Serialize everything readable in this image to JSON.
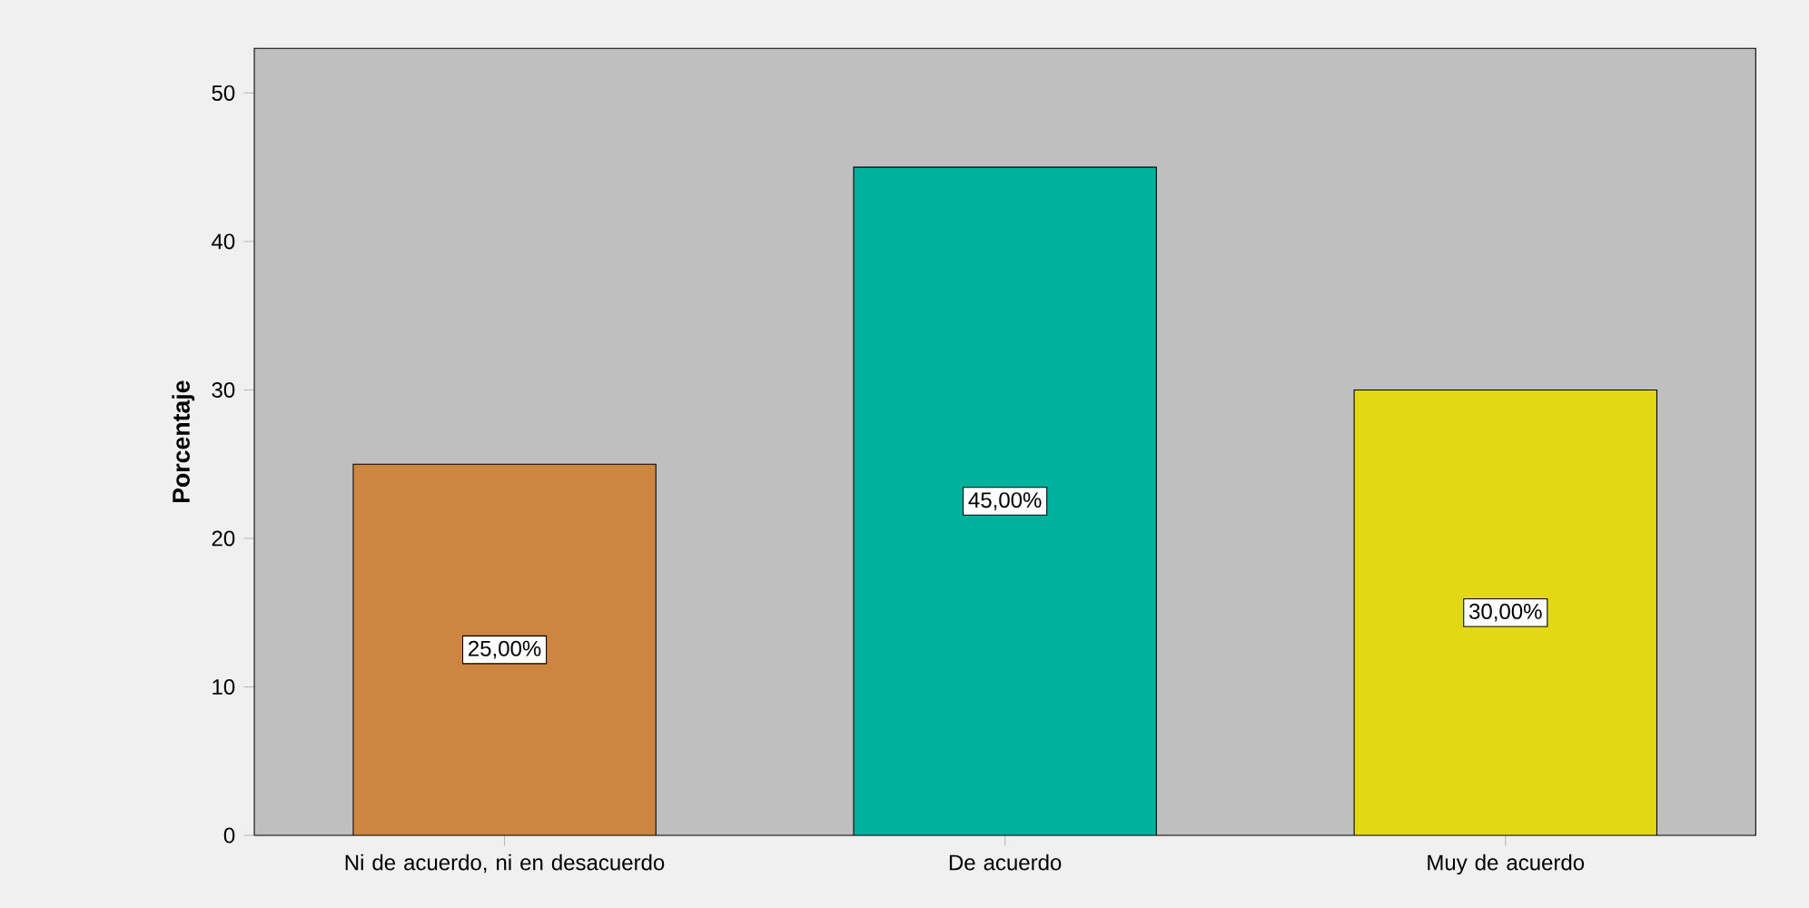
{
  "chart_data": {
    "type": "bar",
    "ylabel": "Porcentaje",
    "categories": [
      "Ni de acuerdo, ni en desacuerdo",
      "De acuerdo",
      "Muy de acuerdo"
    ],
    "values": [
      25,
      45,
      30
    ],
    "colors": [
      "#cd863f",
      "#00b29c",
      "#e2d813"
    ],
    "value_labels": [
      "25,00%",
      "45,00%",
      "30,00%"
    ],
    "ylim": [
      0,
      53
    ],
    "yticks": [
      0,
      10,
      20,
      30,
      40,
      50
    ],
    "grid": false
  }
}
